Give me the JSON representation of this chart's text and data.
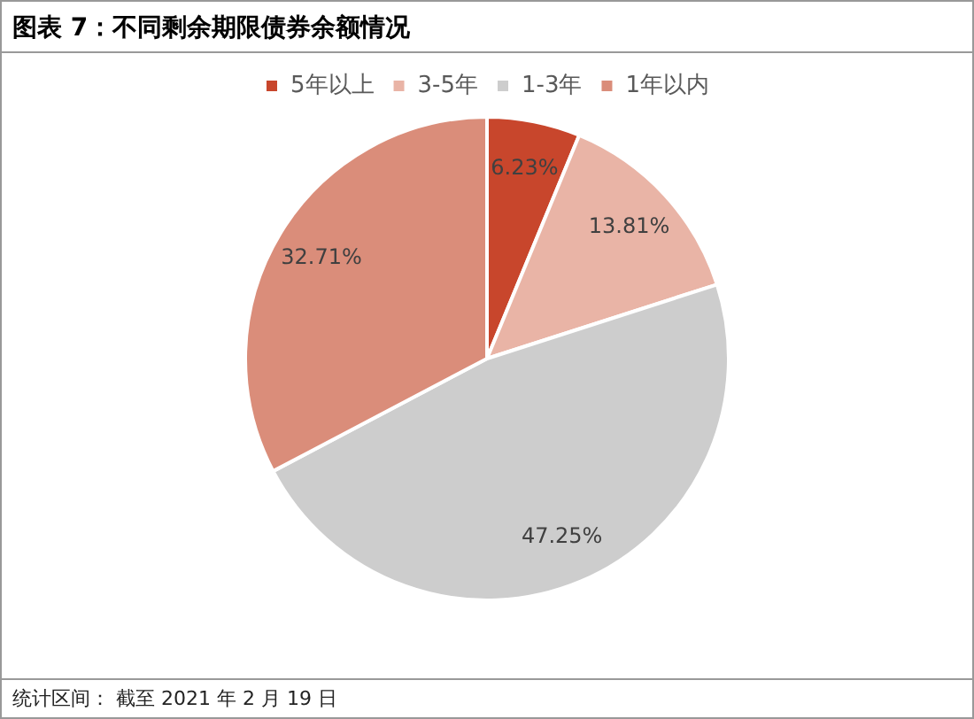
{
  "chart_data": {
    "type": "pie",
    "title": "图表 7：不同剩余期限债券余额情况",
    "categories": [
      "5年以上",
      "3-5年",
      "1-3年",
      "1年以内"
    ],
    "values": [
      6.23,
      13.81,
      47.25,
      32.71
    ],
    "colors": [
      "#c8462c",
      "#e9b4a6",
      "#cdcdcd",
      "#da8d7a"
    ],
    "value_labels": [
      "6.23%",
      "13.81%",
      "47.25%",
      "32.71%"
    ],
    "legend": "top",
    "annotations": [
      "统计区间： 截至 2021 年 2 月 19 日"
    ]
  }
}
